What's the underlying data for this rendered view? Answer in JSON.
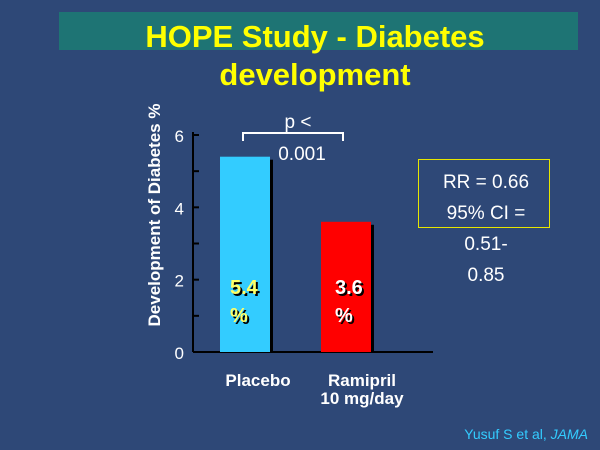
{
  "title": "HOPE Study  - Diabetes development",
  "rr_box": {
    "line1": "RR = 0.66",
    "line2": "95% CI =",
    "line3": "0.51-",
    "line4": "0.85"
  },
  "p_value_line1": "p <",
  "p_value_line2": "0.001",
  "citation": {
    "authors": "Yusuf S et al, ",
    "journal": "JAMA"
  },
  "chart_data": {
    "type": "bar",
    "categories": [
      "Placebo",
      "Ramipril\n10 mg/day"
    ],
    "values": [
      5.4,
      3.6
    ],
    "value_labels": [
      "5.4\n%",
      "3.6\n%"
    ],
    "bar_colors": [
      "#33ccff",
      "#ff0000"
    ],
    "value_label_colors": [
      "#ffff66",
      "#ffffff"
    ],
    "title": "HOPE Study  - Diabetes development",
    "xlabel": "",
    "ylabel": "Development of Diabetes %",
    "ylim": [
      0,
      6
    ],
    "yticks": [
      0,
      2,
      4,
      6
    ],
    "grid": false
  }
}
